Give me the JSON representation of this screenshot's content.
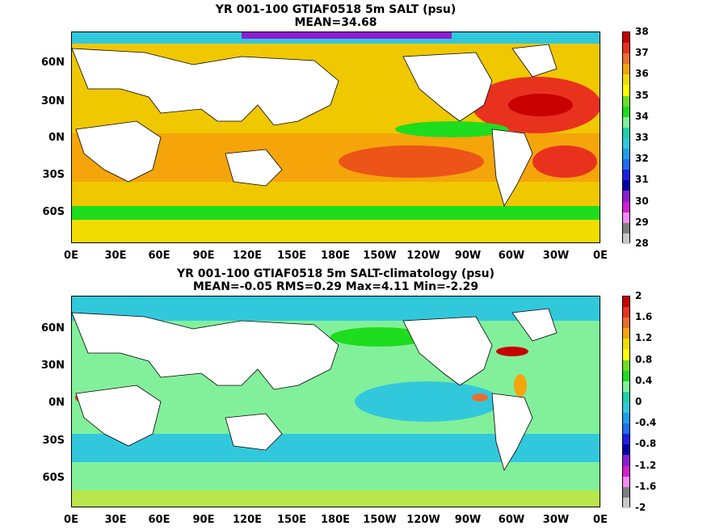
{
  "panels": [
    {
      "title_line1": "YR 001-100 GTIAF0518 5m SALT (psu)",
      "title_line2": "MEAN=34.68",
      "ylabels": [
        "60N",
        "30N",
        "0N",
        "30S",
        "60S"
      ],
      "xlabels": [
        "0E",
        "30E",
        "60E",
        "90E",
        "120E",
        "150E",
        "180E",
        "150W",
        "120W",
        "90W",
        "60W",
        "30W",
        "0E"
      ],
      "colorbar_labels": [
        "38",
        "37",
        "36",
        "35",
        "34",
        "33",
        "32",
        "31",
        "30",
        "29",
        "28"
      ],
      "colorbar_colors": [
        "#c80000",
        "#e8321e",
        "#e86e32",
        "#f5a50a",
        "#f0dc00",
        "#ffff00",
        "#6edc28",
        "#1edc1e",
        "#82f09b",
        "#1ed2aa",
        "#32c8dc",
        "#1ea0e6",
        "#1e6ef0",
        "#1e1ee6",
        "#0000aa",
        "#8c1ed2",
        "#d21ed2",
        "#f08cf0",
        "#808080",
        "#c8c8c8"
      ]
    },
    {
      "title_line1": "YR 001-100 GTIAF0518 5m SALT-climatology (psu)",
      "title_line2": "MEAN=-0.05   RMS=0.29   Max=4.11   Min=-2.29",
      "ylabels": [
        "60N",
        "30N",
        "0N",
        "30S",
        "60S"
      ],
      "xlabels": [
        "0E",
        "30E",
        "60E",
        "90E",
        "120E",
        "150E",
        "180E",
        "150W",
        "120W",
        "90W",
        "60W",
        "30W",
        "0E"
      ],
      "colorbar_labels": [
        "2",
        "1.6",
        "1.2",
        "0.8",
        "0.4",
        "0",
        "-0.4",
        "-0.8",
        "-1.2",
        "-1.6",
        "-2"
      ],
      "colorbar_colors": [
        "#c80000",
        "#e8321e",
        "#e86e32",
        "#f5a50a",
        "#f0dc00",
        "#ffff00",
        "#6edc28",
        "#1edc1e",
        "#82f09b",
        "#1ed2aa",
        "#32c8dc",
        "#1ea0e6",
        "#1e6ef0",
        "#1e1ee6",
        "#0000aa",
        "#8c1ed2",
        "#d21ed2",
        "#f08cf0",
        "#808080",
        "#c8c8c8"
      ]
    }
  ]
}
